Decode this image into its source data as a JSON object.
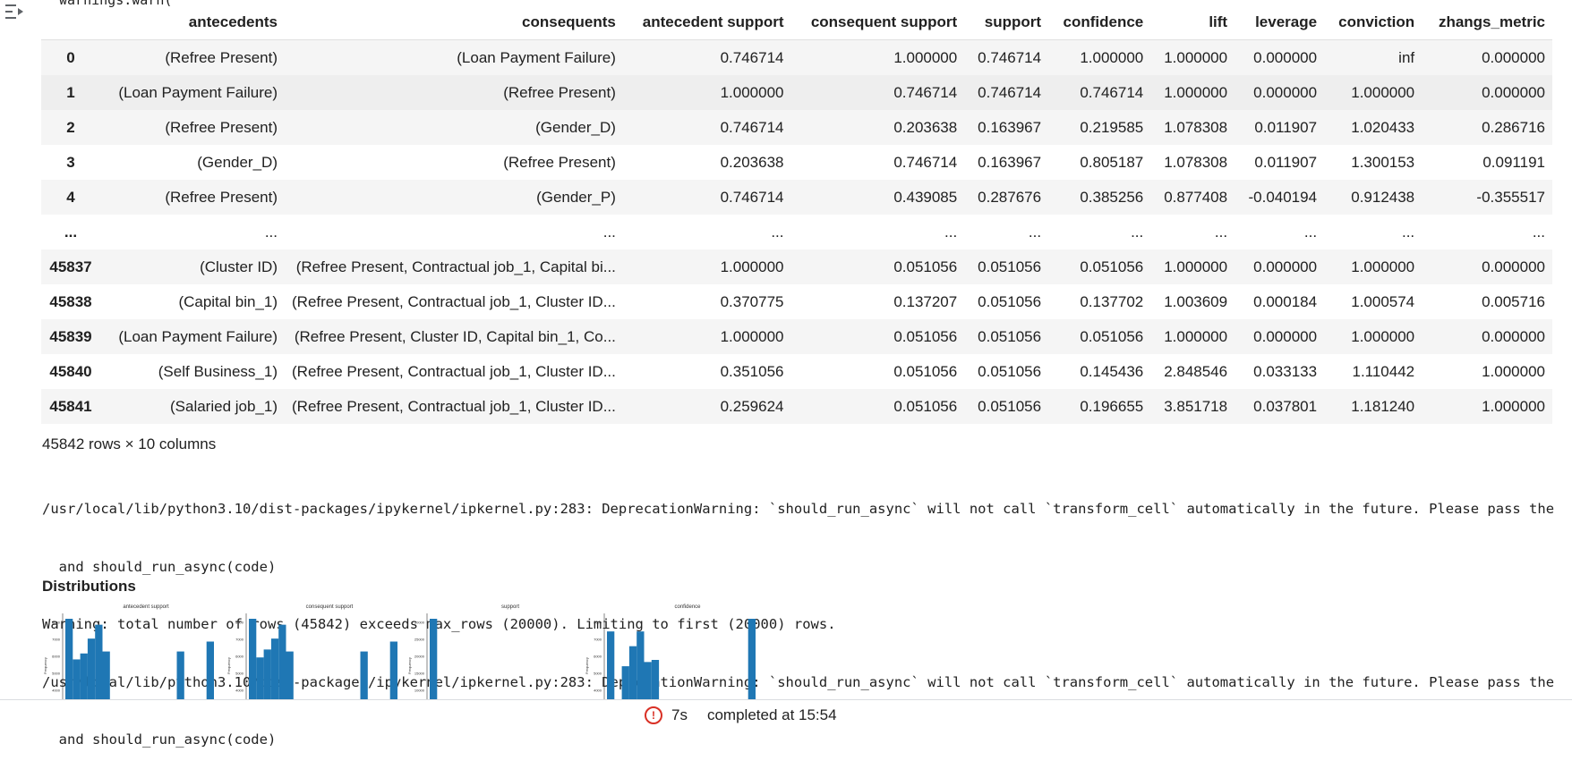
{
  "top_clip": "warnings.warn(",
  "table": {
    "columns": [
      "antecedents",
      "consequents",
      "antecedent support",
      "consequent support",
      "support",
      "confidence",
      "lift",
      "leverage",
      "conviction",
      "zhangs_metric"
    ],
    "rows": [
      {
        "idx": "0",
        "cells": [
          "(Refree Present)",
          "(Loan Payment Failure)",
          "0.746714",
          "1.000000",
          "0.746714",
          "1.000000",
          "1.000000",
          "0.000000",
          "inf",
          "0.000000"
        ]
      },
      {
        "idx": "1",
        "cells": [
          "(Loan Payment Failure)",
          "(Refree Present)",
          "1.000000",
          "0.746714",
          "0.746714",
          "0.746714",
          "1.000000",
          "0.000000",
          "1.000000",
          "0.000000"
        ]
      },
      {
        "idx": "2",
        "cells": [
          "(Refree Present)",
          "(Gender_D)",
          "0.746714",
          "0.203638",
          "0.163967",
          "0.219585",
          "1.078308",
          "0.011907",
          "1.020433",
          "0.286716"
        ]
      },
      {
        "idx": "3",
        "cells": [
          "(Gender_D)",
          "(Refree Present)",
          "0.203638",
          "0.746714",
          "0.163967",
          "0.805187",
          "1.078308",
          "0.011907",
          "1.300153",
          "0.091191"
        ]
      },
      {
        "idx": "4",
        "cells": [
          "(Refree Present)",
          "(Gender_P)",
          "0.746714",
          "0.439085",
          "0.287676",
          "0.385256",
          "0.877408",
          "-0.040194",
          "0.912438",
          "-0.355517"
        ]
      },
      {
        "idx": "...",
        "cells": [
          "...",
          "...",
          "...",
          "...",
          "...",
          "...",
          "...",
          "...",
          "...",
          "..."
        ]
      },
      {
        "idx": "45837",
        "cells": [
          "(Cluster ID)",
          "(Refree Present, Contractual job_1, Capital bi...",
          "1.000000",
          "0.051056",
          "0.051056",
          "0.051056",
          "1.000000",
          "0.000000",
          "1.000000",
          "0.000000"
        ]
      },
      {
        "idx": "45838",
        "cells": [
          "(Capital bin_1)",
          "(Refree Present, Contractual job_1, Cluster ID...",
          "0.370775",
          "0.137207",
          "0.051056",
          "0.137702",
          "1.003609",
          "0.000184",
          "1.000574",
          "0.005716"
        ]
      },
      {
        "idx": "45839",
        "cells": [
          "(Loan Payment Failure)",
          "(Refree Present, Cluster ID, Capital bin_1, Co...",
          "1.000000",
          "0.051056",
          "0.051056",
          "0.051056",
          "1.000000",
          "0.000000",
          "1.000000",
          "0.000000"
        ]
      },
      {
        "idx": "45840",
        "cells": [
          "(Self Business_1)",
          "(Refree Present, Contractual job_1, Cluster ID...",
          "0.351056",
          "0.051056",
          "0.051056",
          "0.145436",
          "2.848546",
          "0.033133",
          "1.110442",
          "1.000000"
        ]
      },
      {
        "idx": "45841",
        "cells": [
          "(Salaried job_1)",
          "(Refree Present, Contractual job_1, Cluster ID...",
          "0.259624",
          "0.051056",
          "0.051056",
          "0.196655",
          "3.851718",
          "0.037801",
          "1.181240",
          "1.000000"
        ]
      }
    ]
  },
  "rows_info": "45842 rows × 10 columns",
  "stderr_lines": [
    "/usr/local/lib/python3.10/dist-packages/ipykernel/ipkernel.py:283: DeprecationWarning: `should_run_async` will not call `transform_cell` automatically in the future. Please pass the result to",
    "  and should_run_async(code)",
    "Warning: total number of rows (45842) exceeds max_rows (20000). Limiting to first (20000) rows.",
    "/usr/local/lib/python3.10/dist-packages/ipykernel/ipkernel.py:283: DeprecationWarning: `should_run_async` will not call `transform_cell` automatically in the future. Please pass the result to",
    "  and should_run_async(code)"
  ],
  "distributions_title": "Distributions",
  "chart_data": [
    {
      "type": "bar",
      "title": "antecedent support",
      "ylabel": "Frequency",
      "yticks": [
        "8000",
        "7000",
        "6000",
        "5000",
        "4000"
      ],
      "values": [
        8300,
        4200,
        4800,
        6300,
        7700,
        5000,
        0,
        0,
        0,
        0,
        0,
        0,
        0,
        0,
        0,
        5000,
        0,
        0,
        0,
        6000
      ]
    },
    {
      "type": "bar",
      "title": "consequent support",
      "ylabel": "Frequency",
      "yticks": [
        "8000",
        "7000",
        "6000",
        "5000",
        "4000"
      ],
      "values": [
        8300,
        4400,
        5200,
        6300,
        7700,
        5000,
        0,
        0,
        0,
        0,
        0,
        0,
        0,
        0,
        0,
        5000,
        0,
        0,
        0,
        6000
      ]
    },
    {
      "type": "bar",
      "title": "support",
      "ylabel": "Frequency",
      "yticks": [
        "30000",
        "25000",
        "20000",
        "15000",
        "10000"
      ],
      "values": [
        30000,
        0,
        0,
        0,
        0,
        0,
        0,
        0,
        0,
        0,
        0,
        0,
        0,
        0,
        0,
        0,
        0,
        0,
        0,
        0
      ]
    },
    {
      "type": "bar",
      "title": "confidence",
      "ylabel": "Frequency",
      "yticks": [
        "8000",
        "7000",
        "6000",
        "5000",
        "4000"
      ],
      "values": [
        6600,
        0,
        3300,
        5200,
        6600,
        3700,
        3900,
        0,
        0,
        0,
        0,
        0,
        0,
        0,
        0,
        0,
        0,
        0,
        0,
        7800
      ]
    }
  ],
  "status": {
    "elapsed": "7s",
    "completed": "completed at 15:54"
  },
  "colors": {
    "bar": "#1f77b4",
    "error": "#d93025"
  }
}
